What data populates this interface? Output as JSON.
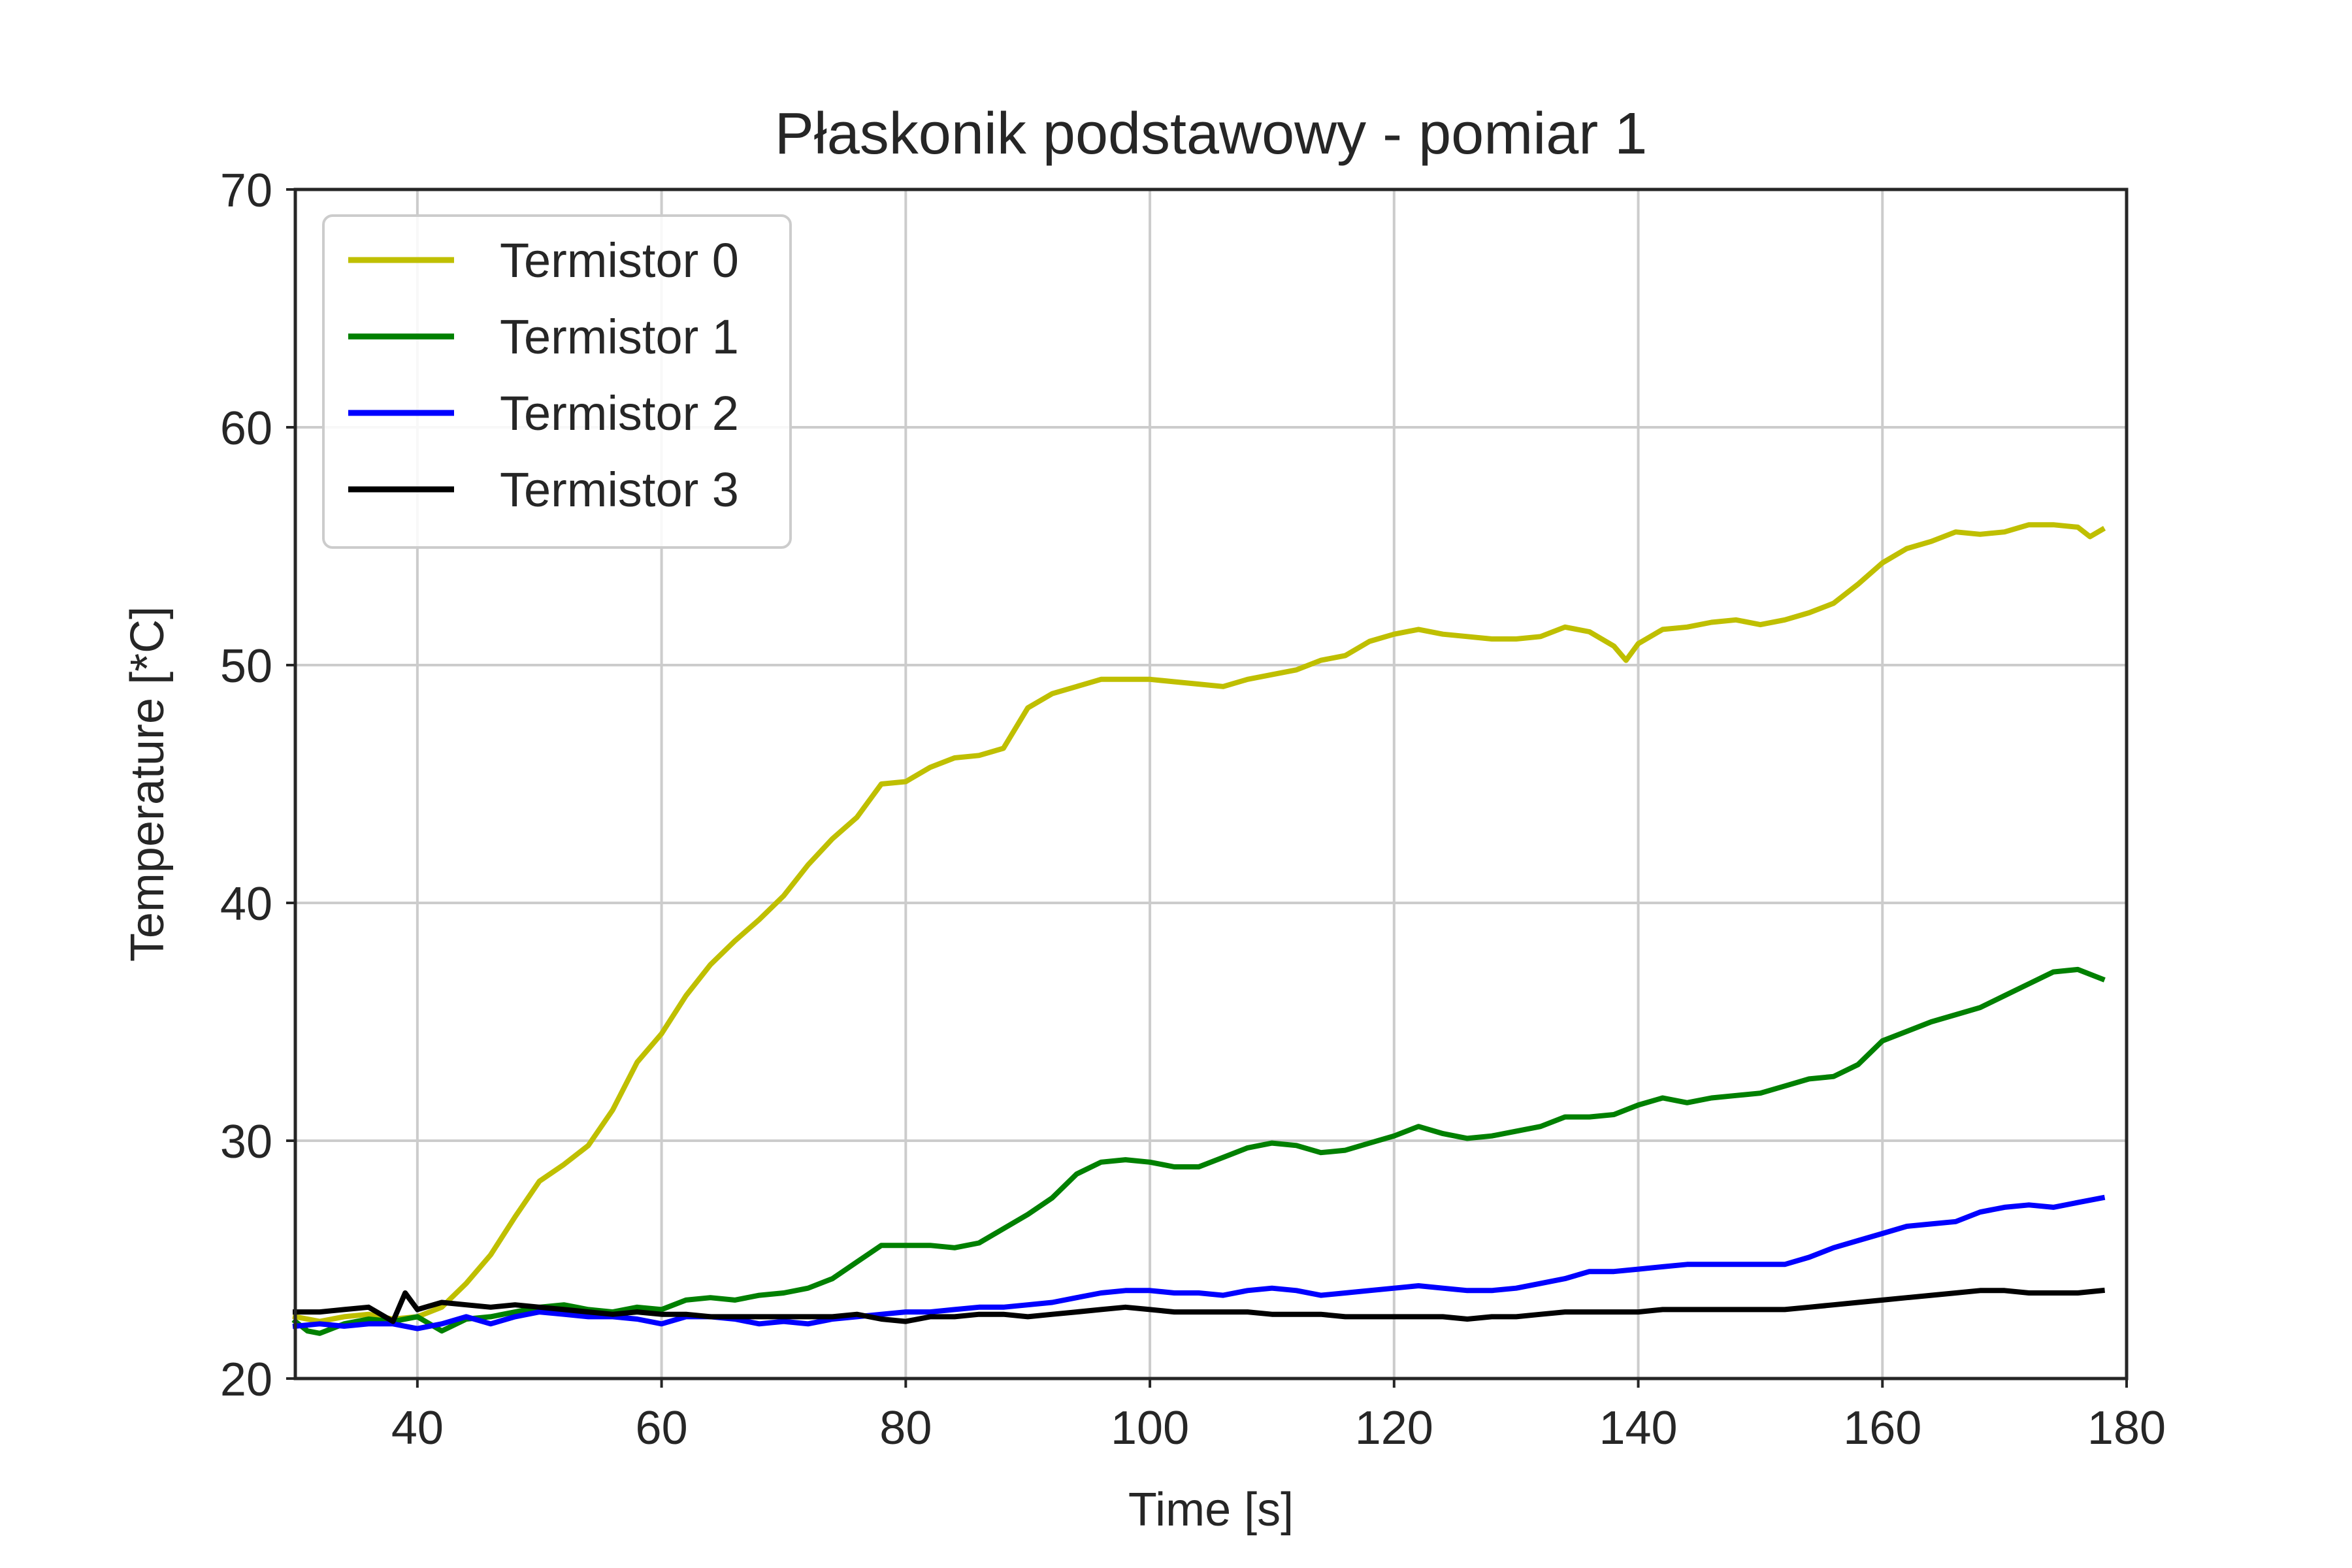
{
  "chart_data": {
    "type": "line",
    "title": "Płaskonik podstawowy - pomiar 1",
    "xlabel": "Time [s]",
    "ylabel": "Temperature [*C]",
    "xlim": [
      30,
      180
    ],
    "ylim": [
      20,
      70
    ],
    "xticks": [
      40,
      60,
      80,
      100,
      120,
      140,
      160,
      180
    ],
    "yticks": [
      20,
      30,
      40,
      50,
      60,
      70
    ],
    "grid": true,
    "legend_position": "top-left",
    "series": [
      {
        "name": "Termistor 0",
        "color": "#bfbf00",
        "points": [
          [
            30,
            22.6
          ],
          [
            32,
            22.4
          ],
          [
            34,
            22.6
          ],
          [
            36,
            22.7
          ],
          [
            38,
            22.5
          ],
          [
            40,
            22.6
          ],
          [
            42,
            23.0
          ],
          [
            44,
            24.0
          ],
          [
            46,
            25.2
          ],
          [
            48,
            26.8
          ],
          [
            50,
            28.3
          ],
          [
            52,
            29.0
          ],
          [
            54,
            29.8
          ],
          [
            56,
            31.3
          ],
          [
            58,
            33.3
          ],
          [
            60,
            34.5
          ],
          [
            62,
            36.1
          ],
          [
            64,
            37.4
          ],
          [
            66,
            38.4
          ],
          [
            68,
            39.3
          ],
          [
            70,
            40.3
          ],
          [
            72,
            41.6
          ],
          [
            74,
            42.7
          ],
          [
            76,
            43.6
          ],
          [
            78,
            45.0
          ],
          [
            80,
            45.1
          ],
          [
            82,
            45.7
          ],
          [
            84,
            46.1
          ],
          [
            86,
            46.2
          ],
          [
            88,
            46.5
          ],
          [
            90,
            48.2
          ],
          [
            92,
            48.8
          ],
          [
            94,
            49.1
          ],
          [
            96,
            49.4
          ],
          [
            98,
            49.4
          ],
          [
            100,
            49.4
          ],
          [
            102,
            49.3
          ],
          [
            104,
            49.2
          ],
          [
            106,
            49.1
          ],
          [
            108,
            49.4
          ],
          [
            110,
            49.6
          ],
          [
            112,
            49.8
          ],
          [
            114,
            50.2
          ],
          [
            116,
            50.4
          ],
          [
            118,
            51.0
          ],
          [
            120,
            51.3
          ],
          [
            122,
            51.5
          ],
          [
            124,
            51.3
          ],
          [
            126,
            51.2
          ],
          [
            128,
            51.1
          ],
          [
            130,
            51.1
          ],
          [
            132,
            51.2
          ],
          [
            134,
            51.6
          ],
          [
            136,
            51.4
          ],
          [
            138,
            50.8
          ],
          [
            139,
            50.2
          ],
          [
            140,
            50.9
          ],
          [
            142,
            51.5
          ],
          [
            144,
            51.6
          ],
          [
            146,
            51.8
          ],
          [
            148,
            51.9
          ],
          [
            150,
            51.7
          ],
          [
            152,
            51.9
          ],
          [
            154,
            52.2
          ],
          [
            156,
            52.6
          ],
          [
            158,
            53.4
          ],
          [
            160,
            54.3
          ],
          [
            162,
            54.9
          ],
          [
            164,
            55.2
          ],
          [
            166,
            55.6
          ],
          [
            168,
            55.5
          ],
          [
            170,
            55.6
          ],
          [
            172,
            55.9
          ],
          [
            174,
            55.9
          ],
          [
            176,
            55.8
          ],
          [
            177,
            55.4
          ],
          [
            178,
            55.7
          ]
        ]
      },
      {
        "name": "Termistor 1",
        "color": "#008000",
        "points": [
          [
            30,
            22.4
          ],
          [
            31,
            22.0
          ],
          [
            32,
            21.9
          ],
          [
            34,
            22.3
          ],
          [
            36,
            22.5
          ],
          [
            38,
            22.4
          ],
          [
            40,
            22.6
          ],
          [
            42,
            22.0
          ],
          [
            44,
            22.5
          ],
          [
            46,
            22.6
          ],
          [
            48,
            22.8
          ],
          [
            50,
            23.0
          ],
          [
            52,
            23.1
          ],
          [
            54,
            22.9
          ],
          [
            56,
            22.8
          ],
          [
            58,
            23.0
          ],
          [
            60,
            22.9
          ],
          [
            62,
            23.3
          ],
          [
            64,
            23.4
          ],
          [
            66,
            23.3
          ],
          [
            68,
            23.5
          ],
          [
            70,
            23.6
          ],
          [
            72,
            23.8
          ],
          [
            74,
            24.2
          ],
          [
            76,
            24.9
          ],
          [
            78,
            25.6
          ],
          [
            80,
            25.6
          ],
          [
            82,
            25.6
          ],
          [
            84,
            25.5
          ],
          [
            86,
            25.7
          ],
          [
            88,
            26.3
          ],
          [
            90,
            26.9
          ],
          [
            92,
            27.6
          ],
          [
            94,
            28.6
          ],
          [
            96,
            29.1
          ],
          [
            98,
            29.2
          ],
          [
            100,
            29.1
          ],
          [
            102,
            28.9
          ],
          [
            104,
            28.9
          ],
          [
            106,
            29.3
          ],
          [
            108,
            29.7
          ],
          [
            110,
            29.9
          ],
          [
            112,
            29.8
          ],
          [
            114,
            29.5
          ],
          [
            116,
            29.6
          ],
          [
            118,
            29.9
          ],
          [
            120,
            30.2
          ],
          [
            122,
            30.6
          ],
          [
            124,
            30.3
          ],
          [
            126,
            30.1
          ],
          [
            128,
            30.2
          ],
          [
            130,
            30.4
          ],
          [
            132,
            30.6
          ],
          [
            134,
            31.0
          ],
          [
            136,
            31.0
          ],
          [
            138,
            31.1
          ],
          [
            140,
            31.5
          ],
          [
            142,
            31.8
          ],
          [
            144,
            31.6
          ],
          [
            146,
            31.8
          ],
          [
            148,
            31.9
          ],
          [
            150,
            32.0
          ],
          [
            152,
            32.3
          ],
          [
            154,
            32.6
          ],
          [
            156,
            32.7
          ],
          [
            158,
            33.2
          ],
          [
            160,
            34.2
          ],
          [
            162,
            34.6
          ],
          [
            164,
            35.0
          ],
          [
            166,
            35.3
          ],
          [
            168,
            35.6
          ],
          [
            170,
            36.1
          ],
          [
            172,
            36.6
          ],
          [
            174,
            37.1
          ],
          [
            176,
            37.2
          ],
          [
            178,
            36.8
          ]
        ]
      },
      {
        "name": "Termistor 2",
        "color": "#0000ff",
        "points": [
          [
            30,
            22.2
          ],
          [
            32,
            22.3
          ],
          [
            34,
            22.2
          ],
          [
            36,
            22.3
          ],
          [
            38,
            22.3
          ],
          [
            40,
            22.1
          ],
          [
            42,
            22.3
          ],
          [
            44,
            22.6
          ],
          [
            46,
            22.3
          ],
          [
            48,
            22.6
          ],
          [
            50,
            22.8
          ],
          [
            52,
            22.7
          ],
          [
            54,
            22.6
          ],
          [
            56,
            22.6
          ],
          [
            58,
            22.5
          ],
          [
            60,
            22.3
          ],
          [
            62,
            22.6
          ],
          [
            64,
            22.6
          ],
          [
            66,
            22.5
          ],
          [
            68,
            22.3
          ],
          [
            70,
            22.4
          ],
          [
            72,
            22.3
          ],
          [
            74,
            22.5
          ],
          [
            76,
            22.6
          ],
          [
            78,
            22.7
          ],
          [
            80,
            22.8
          ],
          [
            82,
            22.8
          ],
          [
            84,
            22.9
          ],
          [
            86,
            23.0
          ],
          [
            88,
            23.0
          ],
          [
            90,
            23.1
          ],
          [
            92,
            23.2
          ],
          [
            94,
            23.4
          ],
          [
            96,
            23.6
          ],
          [
            98,
            23.7
          ],
          [
            100,
            23.7
          ],
          [
            102,
            23.6
          ],
          [
            104,
            23.6
          ],
          [
            106,
            23.5
          ],
          [
            108,
            23.7
          ],
          [
            110,
            23.8
          ],
          [
            112,
            23.7
          ],
          [
            114,
            23.5
          ],
          [
            116,
            23.6
          ],
          [
            118,
            23.7
          ],
          [
            120,
            23.8
          ],
          [
            122,
            23.9
          ],
          [
            124,
            23.8
          ],
          [
            126,
            23.7
          ],
          [
            128,
            23.7
          ],
          [
            130,
            23.8
          ],
          [
            132,
            24.0
          ],
          [
            134,
            24.2
          ],
          [
            136,
            24.5
          ],
          [
            138,
            24.5
          ],
          [
            140,
            24.6
          ],
          [
            142,
            24.7
          ],
          [
            144,
            24.8
          ],
          [
            146,
            24.8
          ],
          [
            148,
            24.8
          ],
          [
            150,
            24.8
          ],
          [
            152,
            24.8
          ],
          [
            154,
            25.1
          ],
          [
            156,
            25.5
          ],
          [
            158,
            25.8
          ],
          [
            160,
            26.1
          ],
          [
            162,
            26.4
          ],
          [
            164,
            26.5
          ],
          [
            166,
            26.6
          ],
          [
            168,
            27.0
          ],
          [
            170,
            27.2
          ],
          [
            172,
            27.3
          ],
          [
            174,
            27.2
          ],
          [
            176,
            27.4
          ],
          [
            178,
            27.6
          ]
        ]
      },
      {
        "name": "Termistor 3",
        "color": "#000000",
        "points": [
          [
            30,
            22.8
          ],
          [
            32,
            22.8
          ],
          [
            34,
            22.9
          ],
          [
            36,
            23.0
          ],
          [
            38,
            22.4
          ],
          [
            39,
            23.6
          ],
          [
            40,
            22.9
          ],
          [
            42,
            23.2
          ],
          [
            44,
            23.1
          ],
          [
            46,
            23.0
          ],
          [
            48,
            23.1
          ],
          [
            50,
            23.0
          ],
          [
            52,
            22.9
          ],
          [
            54,
            22.8
          ],
          [
            56,
            22.7
          ],
          [
            58,
            22.8
          ],
          [
            60,
            22.7
          ],
          [
            62,
            22.7
          ],
          [
            64,
            22.6
          ],
          [
            66,
            22.6
          ],
          [
            68,
            22.6
          ],
          [
            70,
            22.6
          ],
          [
            72,
            22.6
          ],
          [
            74,
            22.6
          ],
          [
            76,
            22.7
          ],
          [
            78,
            22.5
          ],
          [
            80,
            22.4
          ],
          [
            82,
            22.6
          ],
          [
            84,
            22.6
          ],
          [
            86,
            22.7
          ],
          [
            88,
            22.7
          ],
          [
            90,
            22.6
          ],
          [
            92,
            22.7
          ],
          [
            94,
            22.8
          ],
          [
            96,
            22.9
          ],
          [
            98,
            23.0
          ],
          [
            100,
            22.9
          ],
          [
            102,
            22.8
          ],
          [
            104,
            22.8
          ],
          [
            106,
            22.8
          ],
          [
            108,
            22.8
          ],
          [
            110,
            22.7
          ],
          [
            112,
            22.7
          ],
          [
            114,
            22.7
          ],
          [
            116,
            22.6
          ],
          [
            118,
            22.6
          ],
          [
            120,
            22.6
          ],
          [
            122,
            22.6
          ],
          [
            124,
            22.6
          ],
          [
            126,
            22.5
          ],
          [
            128,
            22.6
          ],
          [
            130,
            22.6
          ],
          [
            132,
            22.7
          ],
          [
            134,
            22.8
          ],
          [
            136,
            22.8
          ],
          [
            138,
            22.8
          ],
          [
            140,
            22.8
          ],
          [
            142,
            22.9
          ],
          [
            144,
            22.9
          ],
          [
            146,
            22.9
          ],
          [
            148,
            22.9
          ],
          [
            150,
            22.9
          ],
          [
            152,
            22.9
          ],
          [
            154,
            23.0
          ],
          [
            156,
            23.1
          ],
          [
            158,
            23.2
          ],
          [
            160,
            23.3
          ],
          [
            162,
            23.4
          ],
          [
            164,
            23.5
          ],
          [
            166,
            23.6
          ],
          [
            168,
            23.7
          ],
          [
            170,
            23.7
          ],
          [
            172,
            23.6
          ],
          [
            174,
            23.6
          ],
          [
            176,
            23.6
          ],
          [
            178,
            23.7
          ]
        ]
      }
    ]
  }
}
